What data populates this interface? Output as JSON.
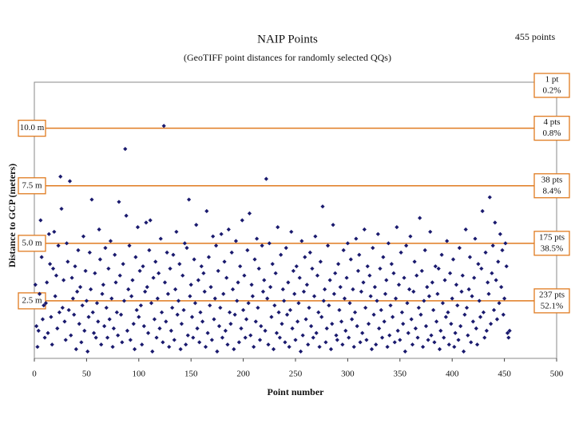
{
  "chart_data": {
    "type": "scatter",
    "title": "NAIP Points",
    "subtitle": "(GeoTIFF point distances for randomly selected QQs)",
    "annotation": "455 points",
    "xlabel": "Point number",
    "ylabel": "Distance to GCP (meters)",
    "color": "#1a1a6e",
    "xlim": [
      0,
      500
    ],
    "ylim": [
      0,
      12
    ],
    "xticks": [
      0,
      50,
      100,
      150,
      200,
      250,
      300,
      350,
      400,
      450,
      500
    ],
    "thresholds": [
      {
        "value": 2.5,
        "label": "2.5 m"
      },
      {
        "value": 5,
        "label": "5.0 m"
      },
      {
        "value": 7.5,
        "label": "7.5 m"
      },
      {
        "value": 10,
        "label": "10.0 m"
      }
    ],
    "bands": [
      {
        "count": "1 pt",
        "share": "0.2%"
      },
      {
        "count": "4 pts",
        "share": "0.8%"
      },
      {
        "count": "38 pts",
        "share": "8.4%"
      },
      {
        "count": "175 pts",
        "share": "38.5%"
      },
      {
        "count": "237 pts",
        "share": "52.1%"
      }
    ],
    "x": [
      1,
      2,
      3,
      4,
      5,
      6,
      7,
      8,
      9,
      10,
      11,
      12,
      13,
      14,
      15,
      16,
      17,
      18,
      19,
      20,
      21,
      22,
      23,
      24,
      25,
      26,
      27,
      28,
      29,
      30,
      31,
      32,
      33,
      34,
      35,
      36,
      37,
      38,
      39,
      40,
      41,
      42,
      43,
      44,
      45,
      46,
      47,
      48,
      49,
      50,
      51,
      52,
      53,
      54,
      55,
      56,
      57,
      58,
      59,
      60,
      61,
      62,
      63,
      64,
      65,
      66,
      67,
      68,
      69,
      70,
      71,
      72,
      73,
      74,
      75,
      76,
      77,
      78,
      79,
      80,
      81,
      82,
      83,
      84,
      85,
      86,
      87,
      88,
      89,
      90,
      91,
      92,
      93,
      94,
      95,
      96,
      97,
      98,
      99,
      100,
      101,
      102,
      103,
      104,
      105,
      106,
      107,
      108,
      109,
      110,
      111,
      112,
      113,
      114,
      115,
      116,
      117,
      118,
      119,
      120,
      121,
      122,
      123,
      124,
      125,
      126,
      127,
      128,
      129,
      130,
      131,
      132,
      133,
      134,
      135,
      136,
      137,
      138,
      139,
      140,
      141,
      142,
      143,
      144,
      145,
      146,
      147,
      148,
      149,
      150,
      151,
      152,
      153,
      154,
      155,
      156,
      157,
      158,
      159,
      160,
      161,
      162,
      163,
      164,
      165,
      166,
      167,
      168,
      169,
      170,
      171,
      172,
      173,
      174,
      175,
      176,
      177,
      178,
      179,
      180,
      181,
      182,
      183,
      184,
      185,
      186,
      187,
      188,
      189,
      190,
      191,
      192,
      193,
      194,
      195,
      196,
      197,
      198,
      199,
      200,
      201,
      202,
      203,
      204,
      205,
      206,
      207,
      208,
      209,
      210,
      211,
      212,
      213,
      214,
      215,
      216,
      217,
      218,
      219,
      220,
      221,
      222,
      223,
      224,
      225,
      226,
      227,
      228,
      229,
      230,
      231,
      232,
      233,
      234,
      235,
      236,
      237,
      238,
      239,
      240,
      241,
      242,
      243,
      244,
      245,
      246,
      247,
      248,
      249,
      250,
      251,
      252,
      253,
      254,
      255,
      256,
      257,
      258,
      259,
      260,
      261,
      262,
      263,
      264,
      265,
      266,
      267,
      268,
      269,
      270,
      271,
      272,
      273,
      274,
      275,
      276,
      277,
      278,
      279,
      280,
      281,
      282,
      283,
      284,
      285,
      286,
      287,
      288,
      289,
      290,
      291,
      292,
      293,
      294,
      295,
      296,
      297,
      298,
      299,
      300,
      301,
      302,
      303,
      304,
      305,
      306,
      307,
      308,
      309,
      310,
      311,
      312,
      313,
      314,
      315,
      316,
      317,
      318,
      319,
      320,
      321,
      322,
      323,
      324,
      325,
      326,
      327,
      328,
      329,
      330,
      331,
      332,
      333,
      334,
      335,
      336,
      337,
      338,
      339,
      340,
      341,
      342,
      343,
      344,
      345,
      346,
      347,
      348,
      349,
      350,
      351,
      352,
      353,
      354,
      355,
      356,
      357,
      358,
      359,
      360,
      361,
      362,
      363,
      364,
      365,
      366,
      367,
      368,
      369,
      370,
      371,
      372,
      373,
      374,
      375,
      376,
      377,
      378,
      379,
      380,
      381,
      382,
      383,
      384,
      385,
      386,
      387,
      388,
      389,
      390,
      391,
      392,
      393,
      394,
      395,
      396,
      397,
      398,
      399,
      400,
      401,
      402,
      403,
      404,
      405,
      406,
      407,
      408,
      409,
      410,
      411,
      412,
      413,
      414,
      415,
      416,
      417,
      418,
      419,
      420,
      421,
      422,
      423,
      424,
      425,
      426,
      427,
      428,
      429,
      430,
      431,
      432,
      433,
      434,
      435,
      436,
      437,
      438,
      439,
      440,
      441,
      442,
      443,
      444,
      445,
      446,
      447,
      448,
      449,
      450,
      451,
      452,
      453,
      454,
      455
    ],
    "y": [
      3.2,
      1.4,
      0.5,
      1.2,
      2.8,
      6.0,
      4.4,
      1.7,
      2.3,
      0.9,
      2.4,
      3.3,
      1.1,
      5.4,
      4.1,
      1.8,
      0.6,
      3.9,
      5.5,
      2.7,
      3.6,
      1.3,
      4.9,
      2.0,
      7.9,
      6.5,
      2.2,
      3.4,
      1.6,
      0.8,
      5.0,
      4.2,
      2.1,
      7.7,
      1.0,
      3.5,
      2.6,
      1.9,
      4.0,
      0.4,
      2.9,
      4.7,
      1.5,
      3.1,
      0.7,
      2.3,
      5.3,
      1.2,
      3.8,
      2.5,
      0.3,
      1.8,
      4.6,
      3.0,
      6.9,
      2.0,
      1.1,
      3.7,
      0.9,
      2.4,
      1.6,
      5.6,
      4.3,
      0.6,
      2.8,
      3.2,
      1.4,
      4.8,
      2.2,
      0.9,
      3.9,
      1.7,
      5.1,
      2.6,
      0.5,
      1.3,
      4.5,
      3.3,
      2.0,
      1.0,
      6.8,
      3.6,
      1.9,
      0.7,
      4.1,
      2.5,
      9.1,
      6.2,
      1.2,
      3.0,
      4.9,
      0.8,
      2.7,
      3.4,
      1.5,
      0.4,
      4.4,
      2.1,
      5.7,
      1.8,
      3.8,
      2.3,
      0.6,
      4.0,
      1.4,
      2.9,
      5.9,
      3.1,
      1.1,
      4.7,
      6.0,
      2.4,
      0.3,
      3.5,
      1.7,
      4.2,
      0.9,
      2.6,
      3.7,
      1.3,
      5.2,
      2.0,
      0.7,
      10.1,
      3.3,
      1.6,
      4.6,
      2.8,
      0.5,
      3.9,
      1.2,
      2.2,
      4.5,
      0.8,
      3.0,
      5.5,
      1.9,
      2.5,
      4.1,
      0.4,
      1.5,
      3.6,
      2.1,
      5.0,
      0.6,
      4.8,
      1.0,
      6.9,
      2.7,
      3.2,
      1.8,
      0.9,
      4.3,
      2.4,
      5.8,
      1.3,
      3.4,
      0.7,
      2.0,
      4.0,
      1.6,
      3.7,
      2.9,
      0.5,
      6.4,
      1.1,
      4.4,
      2.3,
      3.1,
      0.8,
      5.3,
      1.7,
      2.6,
      4.9,
      0.3,
      3.8,
      1.4,
      2.2,
      5.4,
      0.9,
      2.8,
      4.2,
      1.2,
      3.5,
      0.6,
      5.6,
      2.0,
      1.5,
      4.6,
      3.0,
      0.4,
      1.9,
      5.1,
      2.5,
      3.3,
      0.7,
      4.0,
      1.3,
      6.0,
      2.1,
      3.6,
      0.9,
      1.7,
      4.7,
      2.4,
      6.3,
      1.0,
      3.2,
      2.7,
      0.5,
      4.3,
      1.6,
      5.2,
      2.2,
      3.9,
      0.8,
      1.4,
      4.9,
      2.9,
      3.4,
      1.2,
      7.8,
      2.6,
      0.6,
      5.0,
      3.1,
      1.8,
      4.1,
      0.4,
      2.3,
      3.7,
      1.1,
      5.7,
      2.0,
      0.9,
      4.5,
      1.5,
      3.0,
      2.5,
      0.7,
      4.8,
      1.9,
      3.3,
      0.5,
      2.1,
      5.5,
      1.3,
      3.8,
      2.8,
      0.8,
      4.0,
      1.6,
      2.4,
      3.5,
      0.3,
      5.1,
      1.0,
      2.9,
      4.4,
      1.7,
      3.2,
      0.6,
      2.2,
      4.6,
      1.4,
      3.9,
      0.9,
      2.7,
      5.3,
      1.1,
      3.6,
      2.0,
      0.5,
      4.2,
      1.8,
      6.6,
      2.5,
      3.0,
      0.7,
      1.3,
      4.9,
      2.3,
      3.4,
      0.4,
      1.5,
      5.8,
      2.8,
      3.7,
      1.0,
      0.8,
      4.1,
      2.1,
      3.1,
      1.6,
      0.6,
      4.7,
      2.6,
      1.2,
      3.5,
      5.0,
      0.9,
      2.4,
      4.3,
      1.7,
      3.0,
      0.5,
      2.0,
      5.2,
      1.4,
      3.8,
      4.5,
      0.7,
      2.9,
      1.1,
      3.3,
      5.6,
      2.2,
      0.8,
      4.0,
      1.5,
      3.6,
      2.7,
      0.4,
      4.8,
      1.9,
      3.1,
      0.6,
      2.5,
      5.4,
      1.3,
      3.9,
      2.1,
      0.9,
      4.4,
      1.6,
      2.8,
      3.4,
      0.5,
      5.0,
      1.0,
      2.3,
      4.1,
      1.8,
      3.7,
      0.7,
      2.6,
      5.7,
      1.2,
      3.2,
      0.8,
      4.6,
      2.0,
      1.5,
      3.5,
      0.3,
      4.9,
      2.4,
      1.1,
      3.0,
      5.3,
      1.7,
      0.6,
      2.9,
      4.2,
      1.3,
      3.6,
      0.9,
      2.2,
      6.1,
      1.9,
      3.8,
      0.5,
      2.5,
      4.7,
      1.4,
      3.1,
      0.8,
      2.7,
      5.5,
      1.0,
      3.3,
      2.1,
      0.7,
      4.0,
      1.6,
      2.8,
      3.9,
      0.4,
      1.2,
      4.5,
      2.4,
      0.9,
      3.4,
      1.8,
      5.1,
      2.0,
      0.6,
      3.7,
      1.5,
      2.6,
      4.3,
      0.5,
      1.1,
      3.2,
      2.3,
      0.8,
      4.8,
      1.4,
      2.9,
      3.6,
      0.3,
      1.9,
      5.6,
      2.2,
      1.0,
      3.0,
      4.4,
      0.7,
      2.7,
      1.6,
      3.5,
      5.2,
      1.3,
      0.6,
      4.1,
      2.5,
      1.8,
      3.9,
      6.4,
      2.0,
      0.9,
      4.6,
      1.2,
      3.3,
      2.8,
      7.0,
      1.5,
      3.7,
      4.9,
      2.1,
      5.9,
      3.4,
      1.7,
      4.2,
      2.4,
      5.4,
      3.1,
      4.7,
      1.9,
      2.6,
      5.0,
      4.0,
      1.1,
      0.9,
      1.2
    ]
  }
}
